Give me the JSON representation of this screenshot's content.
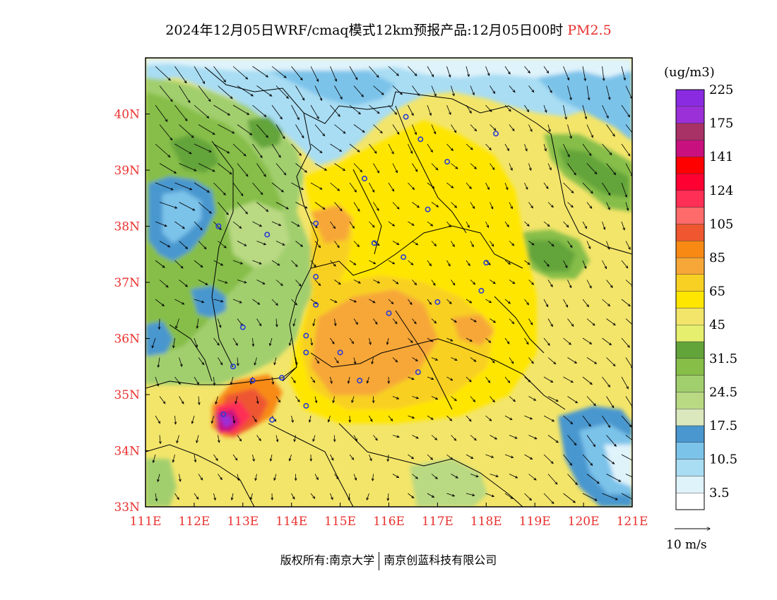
{
  "title": {
    "main": "2024年12月05日WRF/cmaq模式12km预报产品:12月05日00时",
    "species": "PM2.5"
  },
  "map": {
    "lon_ticks": [
      "111E",
      "112E",
      "113E",
      "114E",
      "115E",
      "116E",
      "117E",
      "118E",
      "119E",
      "120E",
      "121E"
    ],
    "lat_ticks": [
      "33N",
      "34N",
      "35N",
      "36N",
      "37N",
      "38N",
      "39N",
      "40N"
    ],
    "lon_range": [
      111,
      121
    ],
    "lat_range": [
      33,
      41
    ]
  },
  "colorbar": {
    "unit": "(ug/m3)",
    "colors": [
      "#ffffff",
      "#dff3fb",
      "#a9ddf3",
      "#7cc3ea",
      "#4a97cf",
      "#dbe8be",
      "#b9d983",
      "#a2cf6e",
      "#86be48",
      "#63a43a",
      "#e6ef6e",
      "#f3e56a",
      "#ffe600",
      "#f8d024",
      "#f7a738",
      "#f88a14",
      "#ee5730",
      "#ff6b6b",
      "#ff2f55",
      "#ff0033",
      "#ff0000",
      "#c8107e",
      "#a83166",
      "#9b2fd8",
      "#8a2be2"
    ],
    "labels": [
      "3.5",
      "10.5",
      "17.5",
      "24.5",
      "31.5",
      "45",
      "65",
      "85",
      "105",
      "124",
      "141",
      "175",
      "225"
    ]
  },
  "wind": {
    "label": "10  m/s"
  },
  "credit": {
    "left": "版权所有:南京大学",
    "right": "南京创蓝科技有限公司"
  },
  "stations": [
    [
      116.35,
      39.95
    ],
    [
      116.65,
      39.55
    ],
    [
      117.2,
      39.15
    ],
    [
      118.2,
      39.65
    ],
    [
      115.5,
      38.85
    ],
    [
      116.8,
      38.3
    ],
    [
      114.5,
      38.05
    ],
    [
      113.5,
      37.85
    ],
    [
      112.5,
      38.0
    ],
    [
      115.7,
      37.7
    ],
    [
      116.3,
      37.45
    ],
    [
      118.0,
      37.35
    ],
    [
      117.9,
      36.85
    ],
    [
      114.5,
      37.1
    ],
    [
      114.5,
      36.6
    ],
    [
      116.0,
      36.45
    ],
    [
      117.0,
      36.65
    ],
    [
      114.3,
      36.05
    ],
    [
      114.3,
      35.75
    ],
    [
      115.0,
      35.75
    ],
    [
      113.0,
      36.2
    ],
    [
      112.8,
      35.5
    ],
    [
      113.2,
      35.25
    ],
    [
      113.8,
      35.3
    ],
    [
      115.4,
      35.25
    ],
    [
      116.6,
      35.4
    ],
    [
      113.6,
      34.55
    ],
    [
      114.3,
      34.8
    ],
    [
      112.6,
      34.65
    ]
  ]
}
